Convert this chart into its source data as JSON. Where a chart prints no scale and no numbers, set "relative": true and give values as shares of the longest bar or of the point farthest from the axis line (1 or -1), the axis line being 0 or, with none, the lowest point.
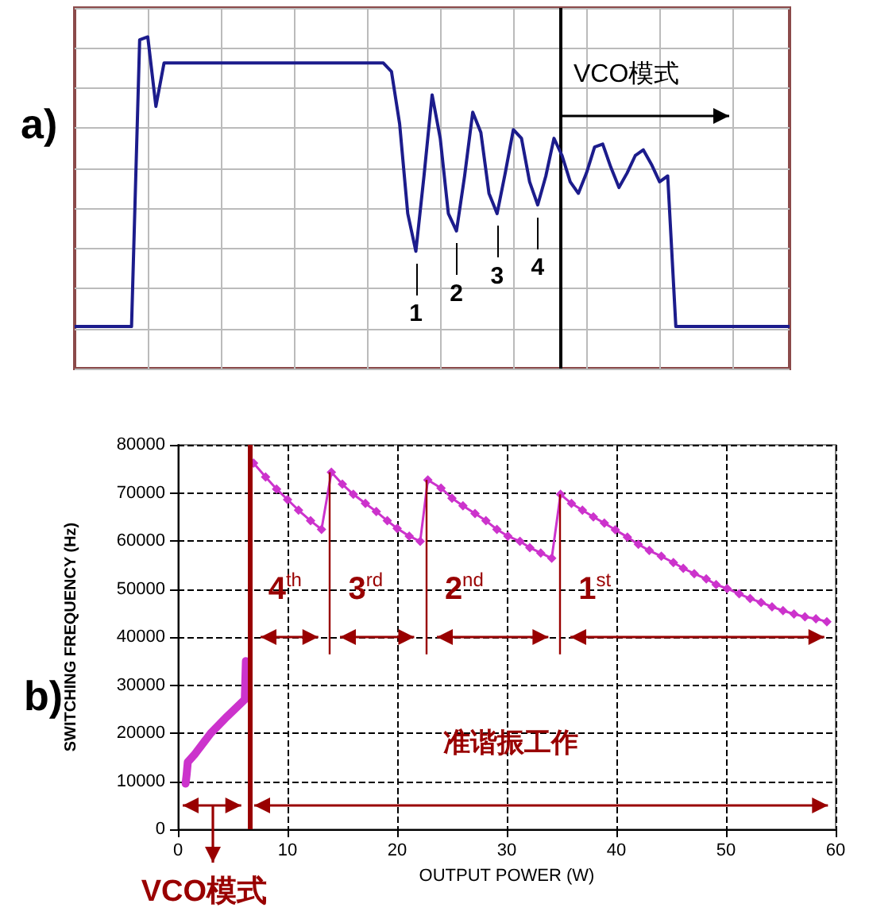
{
  "chart_data": [
    {
      "type": "line",
      "title": "a)",
      "relative": true,
      "categories": [
        null,
        null,
        null,
        null,
        null,
        null,
        null,
        null,
        null,
        null,
        null,
        null,
        null,
        null,
        null,
        null,
        null,
        null,
        null,
        null,
        null,
        null,
        null,
        null,
        null,
        null,
        null,
        null,
        null,
        null,
        null,
        null,
        null,
        null,
        null,
        null,
        null,
        null,
        null,
        null,
        null,
        null,
        null,
        null,
        null,
        null,
        null,
        null,
        null,
        null,
        null,
        null,
        null,
        null,
        null,
        null,
        null,
        null,
        null,
        null,
        null,
        null,
        null,
        null,
        null,
        null,
        null,
        null,
        null,
        null,
        null,
        null,
        null,
        null,
        null,
        null,
        null,
        null,
        null,
        null,
        null,
        null,
        null,
        null,
        null,
        null,
        null,
        null,
        null
      ],
      "series": [
        {
          "color": "#1c1c8c",
          "values": [
            0,
            0,
            0,
            0,
            0,
            0,
            0,
            0,
            0.99,
            1.0,
            0.76,
            0.91,
            0.91,
            0.91,
            0.91,
            0.91,
            0.91,
            0.91,
            0.91,
            0.91,
            0.91,
            0.91,
            0.91,
            0.91,
            0.91,
            0.91,
            0.91,
            0.91,
            0.91,
            0.91,
            0.91,
            0.91,
            0.91,
            0.91,
            0.91,
            0.91,
            0.91,
            0.91,
            0.91,
            0.88,
            0.7,
            0.39,
            0.26,
            0.52,
            0.8,
            0.65,
            0.39,
            0.33,
            0.52,
            0.74,
            0.67,
            0.46,
            0.39,
            0.53,
            0.68,
            0.65,
            0.5,
            0.42,
            0.52,
            0.65,
            0.59,
            0.5,
            0.46,
            0.53,
            0.62,
            0.63,
            0.55,
            0.48,
            0.53,
            0.59,
            0.61,
            0.56,
            0.5,
            0.52,
            0,
            0,
            0,
            0,
            0,
            0,
            0,
            0,
            0,
            0,
            0,
            0,
            0,
            0,
            0
          ]
        }
      ],
      "grid": true,
      "marker": "none",
      "annotations": [
        "1",
        "2",
        "3",
        "4",
        "VCO模式"
      ]
    },
    {
      "type": "line",
      "title": "b)",
      "xlabel": "OUTPUT POWER (W)",
      "ylabel": "SWITCHING FREQUENCY (Hz)",
      "xlim": [
        0,
        60
      ],
      "xticks": [
        0,
        10,
        20,
        30,
        40,
        50,
        60
      ],
      "ylim": [
        0,
        80000
      ],
      "yticks": [
        0,
        10000,
        20000,
        30000,
        40000,
        50000,
        60000,
        70000,
        80000
      ],
      "grid": true,
      "marker": "diamond",
      "series": [
        {
          "color": "#cc33cc",
          "marker": "none",
          "x": [
            0.7,
            0.8,
            0.9,
            1.5,
            3,
            4.5,
            6.1,
            6.2
          ],
          "values": [
            9500,
            11500,
            14000,
            15500,
            20000,
            23500,
            27000,
            35000
          ]
        },
        {
          "color": "#cc33cc",
          "x": [
            6.9,
            8.0,
            9.0,
            10.0,
            11.0,
            12.1,
            13.1,
            14.0,
            15.0,
            16.0,
            17.1,
            18.1,
            19.1,
            20.0,
            21.1,
            22.1,
            22.8,
            24.0,
            25.0,
            26.0,
            27.1,
            28.1,
            29.1,
            30.1,
            31.2,
            32.1,
            33.1,
            34.1,
            34.9,
            35.9,
            36.9,
            37.9,
            38.9,
            39.9,
            41.0,
            42.0,
            43.0,
            44.1,
            45.2,
            46.1,
            47.1,
            48.2,
            49.1,
            50.1,
            51.2,
            52.2,
            53.2,
            54.2,
            55.2,
            56.2,
            57.2,
            58.2,
            59.2
          ],
          "values": [
            76200,
            73300,
            70800,
            68600,
            66400,
            64200,
            62400,
            74300,
            71800,
            69700,
            67800,
            66100,
            64200,
            62600,
            61000,
            59900,
            72700,
            71000,
            68900,
            67300,
            65700,
            64200,
            62400,
            61000,
            59900,
            58600,
            57500,
            56400,
            69700,
            67800,
            66400,
            65000,
            63700,
            62300,
            60800,
            59300,
            58000,
            56800,
            55500,
            54300,
            53200,
            52100,
            50900,
            50100,
            49000,
            48000,
            47200,
            46300,
            45500,
            44800,
            44200,
            43800,
            43200
          ]
        }
      ],
      "ref_lines": [
        {
          "axis": "x",
          "value": 6.5,
          "color": "#990000"
        },
        {
          "axis": "x",
          "value": 13.8,
          "color": "#990000"
        },
        {
          "axis": "x",
          "value": 22.6,
          "color": "#990000"
        },
        {
          "axis": "x",
          "value": 34.8,
          "color": "#990000"
        }
      ],
      "annotations": [
        "4$^{th}$",
        "3$^{rd}$",
        "2$^{nd}$",
        "1$^{st}$",
        "准谐振工作",
        "VCO模式"
      ]
    }
  ]
}
